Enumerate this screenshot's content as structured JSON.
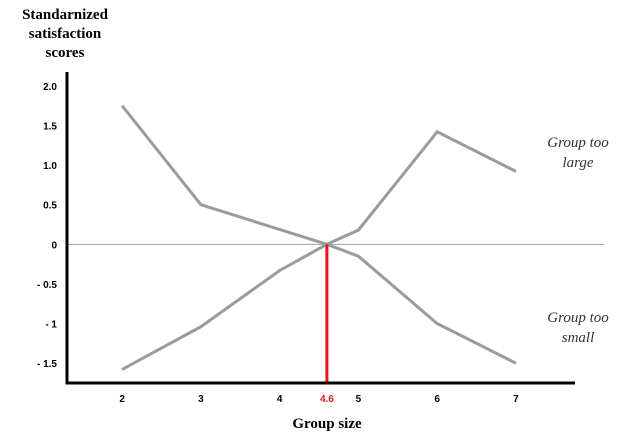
{
  "chart_data": {
    "type": "line",
    "title": "",
    "ylabel": [
      "Standarnized",
      "satisfaction",
      "scores"
    ],
    "xlabel": "Group size",
    "x_ticks": [
      "2",
      "3",
      "4",
      "5",
      "6",
      "7"
    ],
    "y_ticks": [
      "2.0",
      "1.5",
      "1.0",
      "0.5",
      "0",
      "- 0.5",
      "- 1",
      "- 1.5"
    ],
    "xlim": [
      1.3,
      7.75
    ],
    "ylim": [
      -1.75,
      2.2
    ],
    "grid": false,
    "baseline_y": 0,
    "series": [
      {
        "name": "Group too large",
        "label_lines": [
          "Group too",
          "large"
        ],
        "color": "#9b9b9b",
        "x": [
          2,
          3,
          4.6,
          5,
          6,
          7
        ],
        "y": [
          1.75,
          0.5,
          0,
          0.18,
          1.42,
          0.92
        ]
      },
      {
        "name": "Group too small",
        "label_lines": [
          "Group too",
          "small"
        ],
        "color": "#9b9b9b",
        "x": [
          2,
          3,
          4,
          4.6,
          5,
          6,
          7
        ],
        "y": [
          -1.58,
          -1.04,
          -0.33,
          0,
          -0.15,
          -1.0,
          -1.5
        ]
      }
    ],
    "marker": {
      "x": 4.6,
      "label": "4.6",
      "color": "#e8161c"
    }
  }
}
